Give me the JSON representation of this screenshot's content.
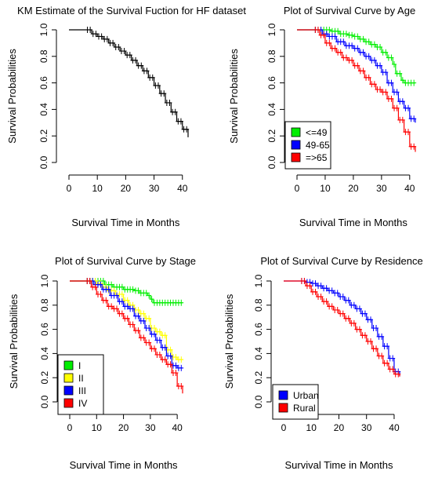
{
  "chart_data": [
    {
      "type": "line",
      "title": "KM Estimate of the Survival Fuction for HF dataset",
      "xlabel": "Survival Time in Months",
      "ylabel": "Survival Probabilities",
      "xlim": [
        0,
        42
      ],
      "ylim": [
        0,
        1
      ],
      "xticks": [
        "0",
        "10",
        "20",
        "30",
        "40"
      ],
      "yticks": [
        "0.0",
        "0.2",
        "0.4",
        "0.6",
        "0.8",
        "1.0"
      ],
      "legend": null,
      "series": [
        {
          "color": "#000000",
          "points": [
            [
              0,
              1
            ],
            [
              6,
              1
            ],
            [
              8,
              0.97
            ],
            [
              10,
              0.95
            ],
            [
              12,
              0.93
            ],
            [
              14,
              0.9
            ],
            [
              16,
              0.87
            ],
            [
              18,
              0.84
            ],
            [
              20,
              0.81
            ],
            [
              22,
              0.77
            ],
            [
              24,
              0.73
            ],
            [
              26,
              0.69
            ],
            [
              28,
              0.64
            ],
            [
              30,
              0.58
            ],
            [
              32,
              0.52
            ],
            [
              34,
              0.45
            ],
            [
              36,
              0.38
            ],
            [
              38,
              0.31
            ],
            [
              40,
              0.25
            ],
            [
              42,
              0.19
            ]
          ]
        }
      ]
    },
    {
      "type": "line",
      "title": "Plot of Survival Curve by Age",
      "xlabel": "Survival Time in Months",
      "ylabel": "Survival Probabilities",
      "xlim": [
        0,
        42
      ],
      "ylim": [
        0,
        1
      ],
      "xticks": [
        "0",
        "10",
        "20",
        "30",
        "40"
      ],
      "yticks": [
        "0.0",
        "0.2",
        "0.4",
        "0.6",
        "0.8",
        "1.0"
      ],
      "legend": "bottom-left",
      "series": [
        {
          "name": "<=49",
          "color": "#00ee00",
          "points": [
            [
              0,
              1
            ],
            [
              6,
              1
            ],
            [
              10,
              1
            ],
            [
              12,
              0.99
            ],
            [
              15,
              0.97
            ],
            [
              18,
              0.96
            ],
            [
              20,
              0.95
            ],
            [
              22,
              0.93
            ],
            [
              24,
              0.91
            ],
            [
              26,
              0.89
            ],
            [
              28,
              0.87
            ],
            [
              30,
              0.83
            ],
            [
              32,
              0.79
            ],
            [
              34,
              0.74
            ],
            [
              35,
              0.67
            ],
            [
              37,
              0.62
            ],
            [
              38,
              0.6
            ],
            [
              42,
              0.6
            ]
          ]
        },
        {
          "name": "49-65",
          "color": "#0000ff",
          "points": [
            [
              0,
              1
            ],
            [
              6,
              1
            ],
            [
              9,
              0.97
            ],
            [
              11,
              0.95
            ],
            [
              14,
              0.91
            ],
            [
              17,
              0.88
            ],
            [
              20,
              0.86
            ],
            [
              22,
              0.83
            ],
            [
              24,
              0.8
            ],
            [
              26,
              0.77
            ],
            [
              28,
              0.73
            ],
            [
              30,
              0.68
            ],
            [
              32,
              0.6
            ],
            [
              34,
              0.53
            ],
            [
              36,
              0.46
            ],
            [
              38,
              0.41
            ],
            [
              40,
              0.33
            ],
            [
              42,
              0.3
            ]
          ]
        },
        {
          "name": "=>65",
          "color": "#ff0000",
          "points": [
            [
              0,
              1
            ],
            [
              6,
              1
            ],
            [
              8,
              0.96
            ],
            [
              10,
              0.9
            ],
            [
              12,
              0.86
            ],
            [
              14,
              0.83
            ],
            [
              16,
              0.79
            ],
            [
              18,
              0.77
            ],
            [
              20,
              0.73
            ],
            [
              22,
              0.69
            ],
            [
              24,
              0.64
            ],
            [
              26,
              0.59
            ],
            [
              28,
              0.55
            ],
            [
              30,
              0.53
            ],
            [
              32,
              0.48
            ],
            [
              34,
              0.41
            ],
            [
              36,
              0.32
            ],
            [
              38,
              0.23
            ],
            [
              40,
              0.12
            ],
            [
              42,
              0.08
            ]
          ]
        }
      ]
    },
    {
      "type": "line",
      "title": "Plot of Survival Curve by Stage",
      "xlabel": "Survival Time in Months",
      "ylabel": "Survival Probabilities",
      "xlim": [
        0,
        42
      ],
      "ylim": [
        0,
        1
      ],
      "xticks": [
        "0",
        "10",
        "20",
        "30",
        "40"
      ],
      "yticks": [
        "0.0",
        "0.2",
        "0.4",
        "0.6",
        "0.8",
        "1.0"
      ],
      "legend": "bottom-left",
      "series": [
        {
          "name": "I",
          "color": "#00ee00",
          "points": [
            [
              0,
              1
            ],
            [
              6,
              1
            ],
            [
              10,
              1
            ],
            [
              13,
              0.97
            ],
            [
              16,
              0.95
            ],
            [
              20,
              0.93
            ],
            [
              24,
              0.92
            ],
            [
              26,
              0.9
            ],
            [
              29,
              0.88
            ],
            [
              30,
              0.85
            ],
            [
              31,
              0.82
            ],
            [
              34,
              0.82
            ],
            [
              42,
              0.82
            ]
          ]
        },
        {
          "name": "II",
          "color": "#ffff00",
          "points": [
            [
              0,
              1
            ],
            [
              6,
              1
            ],
            [
              10,
              0.98
            ],
            [
              12,
              0.95
            ],
            [
              14,
              0.92
            ],
            [
              17,
              0.89
            ],
            [
              20,
              0.84
            ],
            [
              22,
              0.8
            ],
            [
              24,
              0.76
            ],
            [
              26,
              0.73
            ],
            [
              28,
              0.69
            ],
            [
              30,
              0.61
            ],
            [
              32,
              0.58
            ],
            [
              34,
              0.55
            ],
            [
              36,
              0.43
            ],
            [
              38,
              0.37
            ],
            [
              40,
              0.35
            ],
            [
              42,
              0.35
            ]
          ]
        },
        {
          "name": "III",
          "color": "#0000ff",
          "points": [
            [
              0,
              1
            ],
            [
              6,
              1
            ],
            [
              9,
              0.97
            ],
            [
              12,
              0.93
            ],
            [
              15,
              0.88
            ],
            [
              18,
              0.83
            ],
            [
              20,
              0.79
            ],
            [
              22,
              0.77
            ],
            [
              24,
              0.71
            ],
            [
              26,
              0.67
            ],
            [
              28,
              0.61
            ],
            [
              30,
              0.56
            ],
            [
              32,
              0.51
            ],
            [
              34,
              0.45
            ],
            [
              36,
              0.38
            ],
            [
              38,
              0.3
            ],
            [
              40,
              0.28
            ],
            [
              42,
              0.28
            ]
          ]
        },
        {
          "name": "IV",
          "color": "#ff0000",
          "points": [
            [
              0,
              1
            ],
            [
              6,
              1
            ],
            [
              8,
              0.95
            ],
            [
              10,
              0.89
            ],
            [
              12,
              0.84
            ],
            [
              14,
              0.79
            ],
            [
              16,
              0.77
            ],
            [
              18,
              0.73
            ],
            [
              20,
              0.69
            ],
            [
              22,
              0.64
            ],
            [
              24,
              0.59
            ],
            [
              26,
              0.53
            ],
            [
              28,
              0.49
            ],
            [
              30,
              0.44
            ],
            [
              32,
              0.39
            ],
            [
              34,
              0.35
            ],
            [
              36,
              0.31
            ],
            [
              38,
              0.24
            ],
            [
              40,
              0.13
            ],
            [
              42,
              0.07
            ]
          ]
        }
      ]
    },
    {
      "type": "line",
      "title": "Plot of Survival Curve by Residence",
      "xlabel": "Survival Time in Months",
      "ylabel": "Survival Probabilities",
      "xlim": [
        0,
        42
      ],
      "ylim": [
        0,
        1
      ],
      "xticks": [
        "0",
        "10",
        "20",
        "30",
        "40"
      ],
      "yticks": [
        "0.0",
        "0.2",
        "0.4",
        "0.6",
        "0.8",
        "1.0"
      ],
      "legend": "bottom-left",
      "series": [
        {
          "name": "Urban",
          "color": "#0000ff",
          "points": [
            [
              0,
              1
            ],
            [
              6,
              1
            ],
            [
              8,
              0.99
            ],
            [
              10,
              0.98
            ],
            [
              12,
              0.96
            ],
            [
              14,
              0.94
            ],
            [
              16,
              0.92
            ],
            [
              18,
              0.9
            ],
            [
              20,
              0.87
            ],
            [
              22,
              0.84
            ],
            [
              24,
              0.8
            ],
            [
              26,
              0.77
            ],
            [
              28,
              0.73
            ],
            [
              30,
              0.68
            ],
            [
              32,
              0.61
            ],
            [
              34,
              0.54
            ],
            [
              36,
              0.46
            ],
            [
              38,
              0.36
            ],
            [
              40,
              0.25
            ],
            [
              42,
              0.21
            ]
          ]
        },
        {
          "name": "Rural",
          "color": "#ff0000",
          "points": [
            [
              0,
              1
            ],
            [
              6,
              1
            ],
            [
              8,
              0.96
            ],
            [
              10,
              0.91
            ],
            [
              12,
              0.87
            ],
            [
              14,
              0.83
            ],
            [
              16,
              0.79
            ],
            [
              18,
              0.76
            ],
            [
              20,
              0.73
            ],
            [
              22,
              0.69
            ],
            [
              24,
              0.65
            ],
            [
              26,
              0.6
            ],
            [
              28,
              0.55
            ],
            [
              30,
              0.5
            ],
            [
              32,
              0.44
            ],
            [
              34,
              0.38
            ],
            [
              36,
              0.32
            ],
            [
              38,
              0.27
            ],
            [
              40,
              0.23
            ],
            [
              42,
              0.21
            ]
          ]
        }
      ]
    }
  ]
}
